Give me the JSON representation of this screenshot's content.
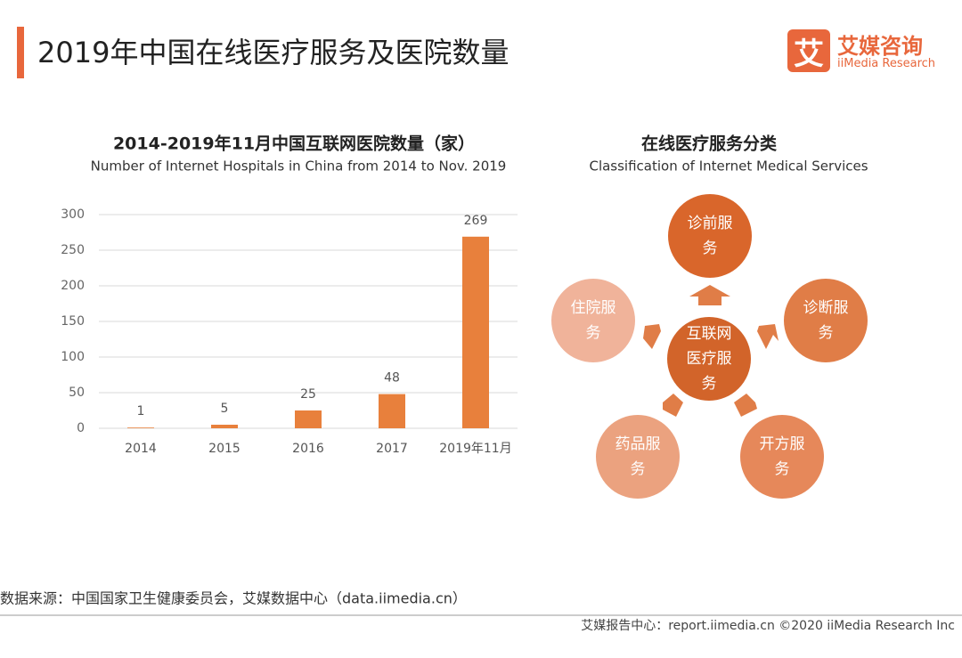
{
  "header": {
    "title": "2019年中国在线医疗服务及医院数量",
    "logo_mark": "艾",
    "logo_cn": "艾媒咨询",
    "logo_en": "iiMedia Research"
  },
  "chart_data": {
    "type": "bar",
    "title": "2014-2019年11月中国互联网医院数量（家）",
    "subtitle": "Number of Internet Hospitals in China from 2014 to Nov. 2019",
    "categories": [
      "2014",
      "2015",
      "2016",
      "2017",
      "2019年11月"
    ],
    "values": [
      1,
      5,
      25,
      48,
      269
    ],
    "color": "#e8803c",
    "ylim": [
      0,
      300
    ],
    "yticks": [
      0,
      50,
      100,
      150,
      200,
      250,
      300
    ],
    "grid": true
  },
  "diagram": {
    "title": "在线医疗服务分类",
    "subtitle": "Classification of Internet Medical Services",
    "center": "互联网医疗服务",
    "nodes": [
      {
        "label": "诊前服务"
      },
      {
        "label": "诊断服务"
      },
      {
        "label": "开方服务"
      },
      {
        "label": "药品服务"
      },
      {
        "label": "住院服务"
      }
    ]
  },
  "footer": {
    "source": "数据来源：中国国家卫生健康委员会，艾媒数据中心（data.iimedia.cn）",
    "copyright": "艾媒报告中心：report.iimedia.cn  ©2020  iiMedia Research Inc"
  }
}
